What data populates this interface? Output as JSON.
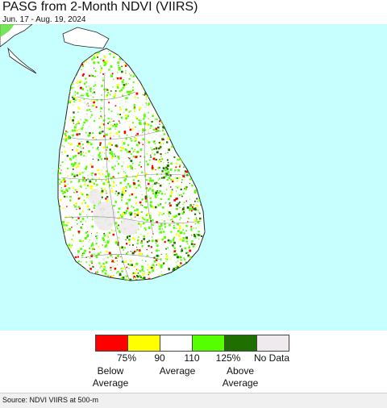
{
  "map": {
    "title": "PASG from 2-Month NDVI (VIIRS)",
    "date_range": "Jun. 17 - Aug. 19, 2024",
    "ocean_color": "#c7fffe",
    "land_base_color": "#ffffff"
  },
  "legend": {
    "swatches": [
      {
        "name": "below-average-red",
        "color": "#ff0000"
      },
      {
        "name": "below-average-yellow",
        "color": "#ffff00"
      },
      {
        "name": "average-white",
        "color": "#ffffff"
      },
      {
        "name": "above-average-light-green",
        "color": "#55ff00"
      },
      {
        "name": "above-average-dark-green",
        "color": "#1e6e00"
      },
      {
        "name": "no-data",
        "color": "#eeeaee"
      }
    ],
    "ticks": [
      "75%",
      "90",
      "110",
      "125%",
      "No Data"
    ],
    "categories": {
      "below": "Below\nAverage",
      "average": "Average",
      "above": "Above\nAverage"
    }
  },
  "footer": {
    "source": "Source: NDVI VIIRS at 500-m"
  }
}
